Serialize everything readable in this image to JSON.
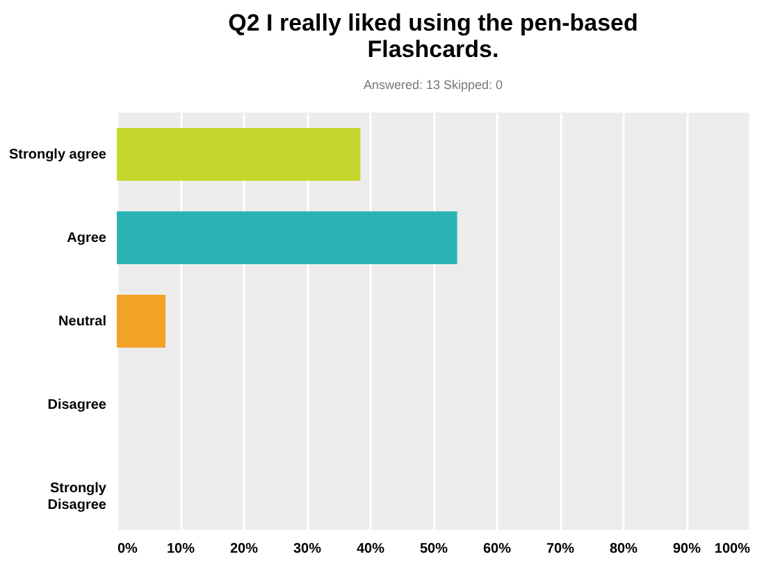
{
  "chart_data": {
    "type": "bar",
    "orientation": "horizontal",
    "title": "Q2 I really liked using the pen-based Flashcards.",
    "subtitle": "Answered: 13    Skipped: 0",
    "categories": [
      "Strongly agree",
      "Agree",
      "Neutral",
      "Disagree",
      "Strongly Disagree"
    ],
    "values": [
      38.5,
      53.8,
      7.7,
      0,
      0
    ],
    "colors": [
      "#c5d62d",
      "#2bb3b3",
      "#f2a227",
      "#8c6bb1",
      "#e0457b"
    ],
    "xlim": [
      0,
      100
    ],
    "xticks": [
      {
        "value": 0,
        "label": "0%"
      },
      {
        "value": 10,
        "label": "10%"
      },
      {
        "value": 20,
        "label": "20%"
      },
      {
        "value": 30,
        "label": "30%"
      },
      {
        "value": 40,
        "label": "40%"
      },
      {
        "value": 50,
        "label": "50%"
      },
      {
        "value": 60,
        "label": "60%"
      },
      {
        "value": 70,
        "label": "70%"
      },
      {
        "value": 80,
        "label": "80%"
      },
      {
        "value": 90,
        "label": "90%"
      },
      {
        "value": 100,
        "label": "100%"
      }
    ],
    "grid": "x",
    "legend": false
  }
}
